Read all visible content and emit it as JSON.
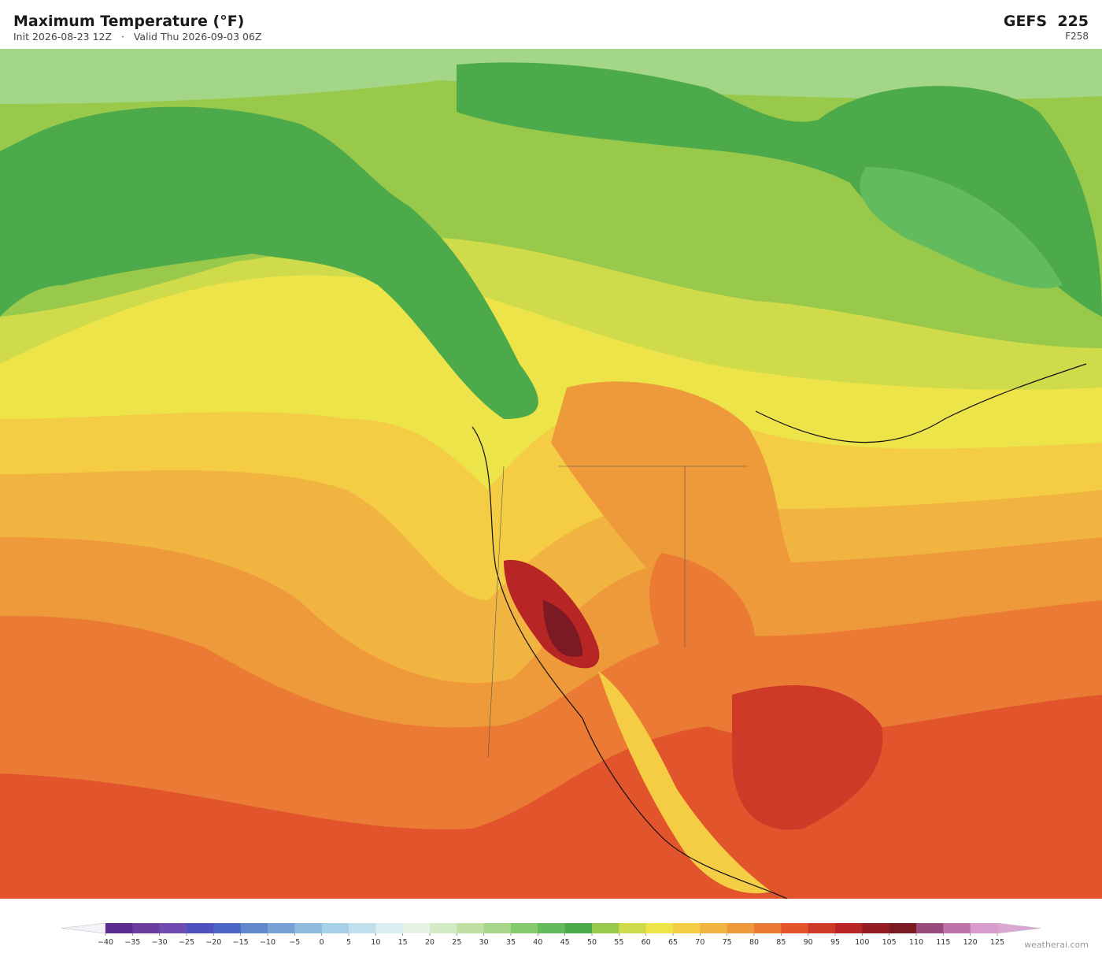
{
  "header": {
    "title": "Maximum Temperature  (°F)",
    "subtitle": "Init 2026-08-23 12Z   ·   Valid Thu 2026-09-03 06Z",
    "model": "GEFS  225",
    "forecast_hour": "F258"
  },
  "colorbar": {
    "ticks": [
      {
        "value": -40,
        "label": "−40"
      },
      {
        "value": -35,
        "label": "−35"
      },
      {
        "value": -30,
        "label": "−30"
      },
      {
        "value": -25,
        "label": "−25"
      },
      {
        "value": -20,
        "label": "−20"
      },
      {
        "value": -15,
        "label": "−15"
      },
      {
        "value": -10,
        "label": "−10"
      },
      {
        "value": -5,
        "label": "−5"
      },
      0,
      5,
      10,
      15,
      20,
      25,
      30,
      35,
      40,
      45,
      50,
      55,
      60,
      65,
      70,
      75,
      80,
      85,
      90,
      95,
      100,
      105,
      110,
      115,
      120,
      125
    ],
    "colors": [
      "#5b2c8f",
      "#6b3d9f",
      "#6e4cb0",
      "#5050c0",
      "#4c66c8",
      "#6088cc",
      "#78a2d6",
      "#8ebade",
      "#a6cfe8",
      "#c0e0ee",
      "#d8eef2",
      "#e4f3e6",
      "#d2ebc4",
      "#bfe0a2",
      "#a6d688",
      "#84c96c",
      "#62bb5c",
      "#4caa4a",
      "#98c94a",
      "#cfdb4a",
      "#ece448",
      "#f4cd45",
      "#f2b440",
      "#ee9a3a",
      "#ea7a34",
      "#e2552c",
      "#cf3a28",
      "#b72525",
      "#951c22",
      "#7b1a22",
      "#9a4a7a",
      "#bd72a8",
      "#d79ccb"
    ],
    "under_color": "#f4f2f8",
    "over_color": "#dba6d4"
  },
  "watermark": "weatherai.com"
}
